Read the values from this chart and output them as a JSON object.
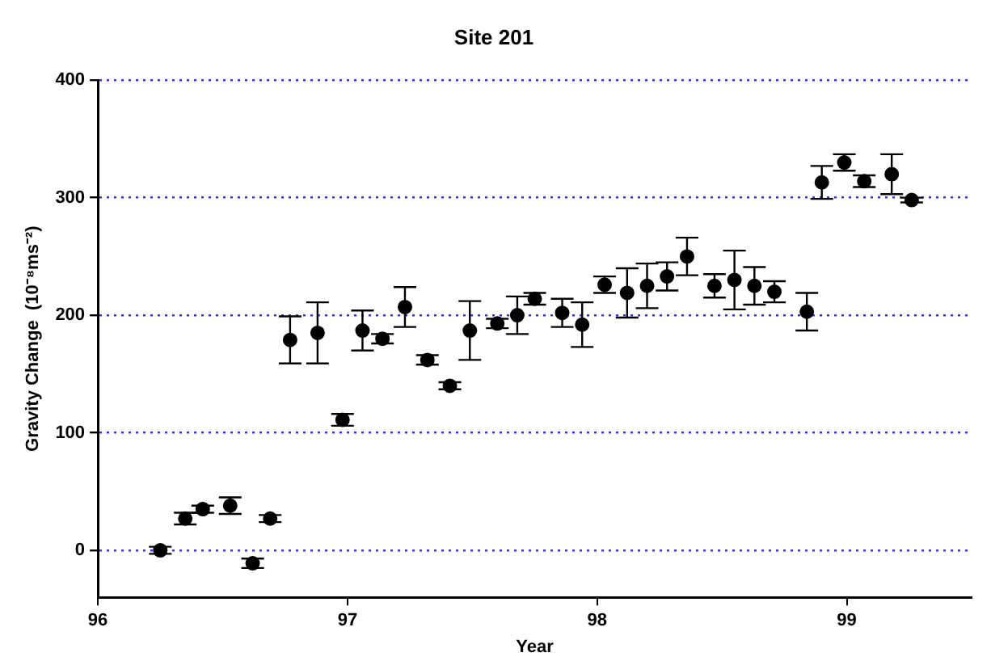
{
  "chart_data": {
    "type": "scatter",
    "title": "Site 201",
    "xlabel": "Year",
    "ylabel": "Gravity Change  (10⁻⁸ms⁻²)",
    "xlim": [
      96,
      99.5
    ],
    "xticks": [
      96,
      97,
      98,
      99
    ],
    "ylim": [
      -40,
      400
    ],
    "yticks": [
      0,
      100,
      200,
      300,
      400
    ],
    "grid": "y",
    "marker": "circle",
    "legend": false,
    "series": [
      {
        "color": "#000000",
        "x": [
          96.25,
          96.35,
          96.42,
          96.53,
          96.62,
          96.69,
          96.77,
          96.88,
          96.98,
          97.06,
          97.14,
          97.23,
          97.32,
          97.41,
          97.49,
          97.6,
          97.68,
          97.75,
          97.86,
          97.94,
          98.03,
          98.12,
          98.2,
          98.28,
          98.36,
          98.47,
          98.55,
          98.63,
          98.71,
          98.84,
          98.9,
          98.99,
          99.07,
          99.18,
          99.26
        ],
        "values": [
          0,
          27,
          35,
          38,
          -11,
          27,
          179,
          185,
          111,
          187,
          180,
          207,
          162,
          140,
          187,
          193,
          200,
          214,
          202,
          192,
          226,
          219,
          225,
          233,
          250,
          225,
          230,
          225,
          220,
          203,
          313,
          330,
          314,
          320,
          298
        ],
        "errors": [
          3,
          5,
          3,
          7,
          4,
          3,
          20,
          26,
          5,
          17,
          4,
          17,
          4,
          3,
          25,
          4,
          16,
          5,
          12,
          19,
          7,
          21,
          19,
          12,
          16,
          10,
          25,
          16,
          9,
          16,
          14,
          7,
          5,
          17,
          2
        ]
      }
    ]
  }
}
